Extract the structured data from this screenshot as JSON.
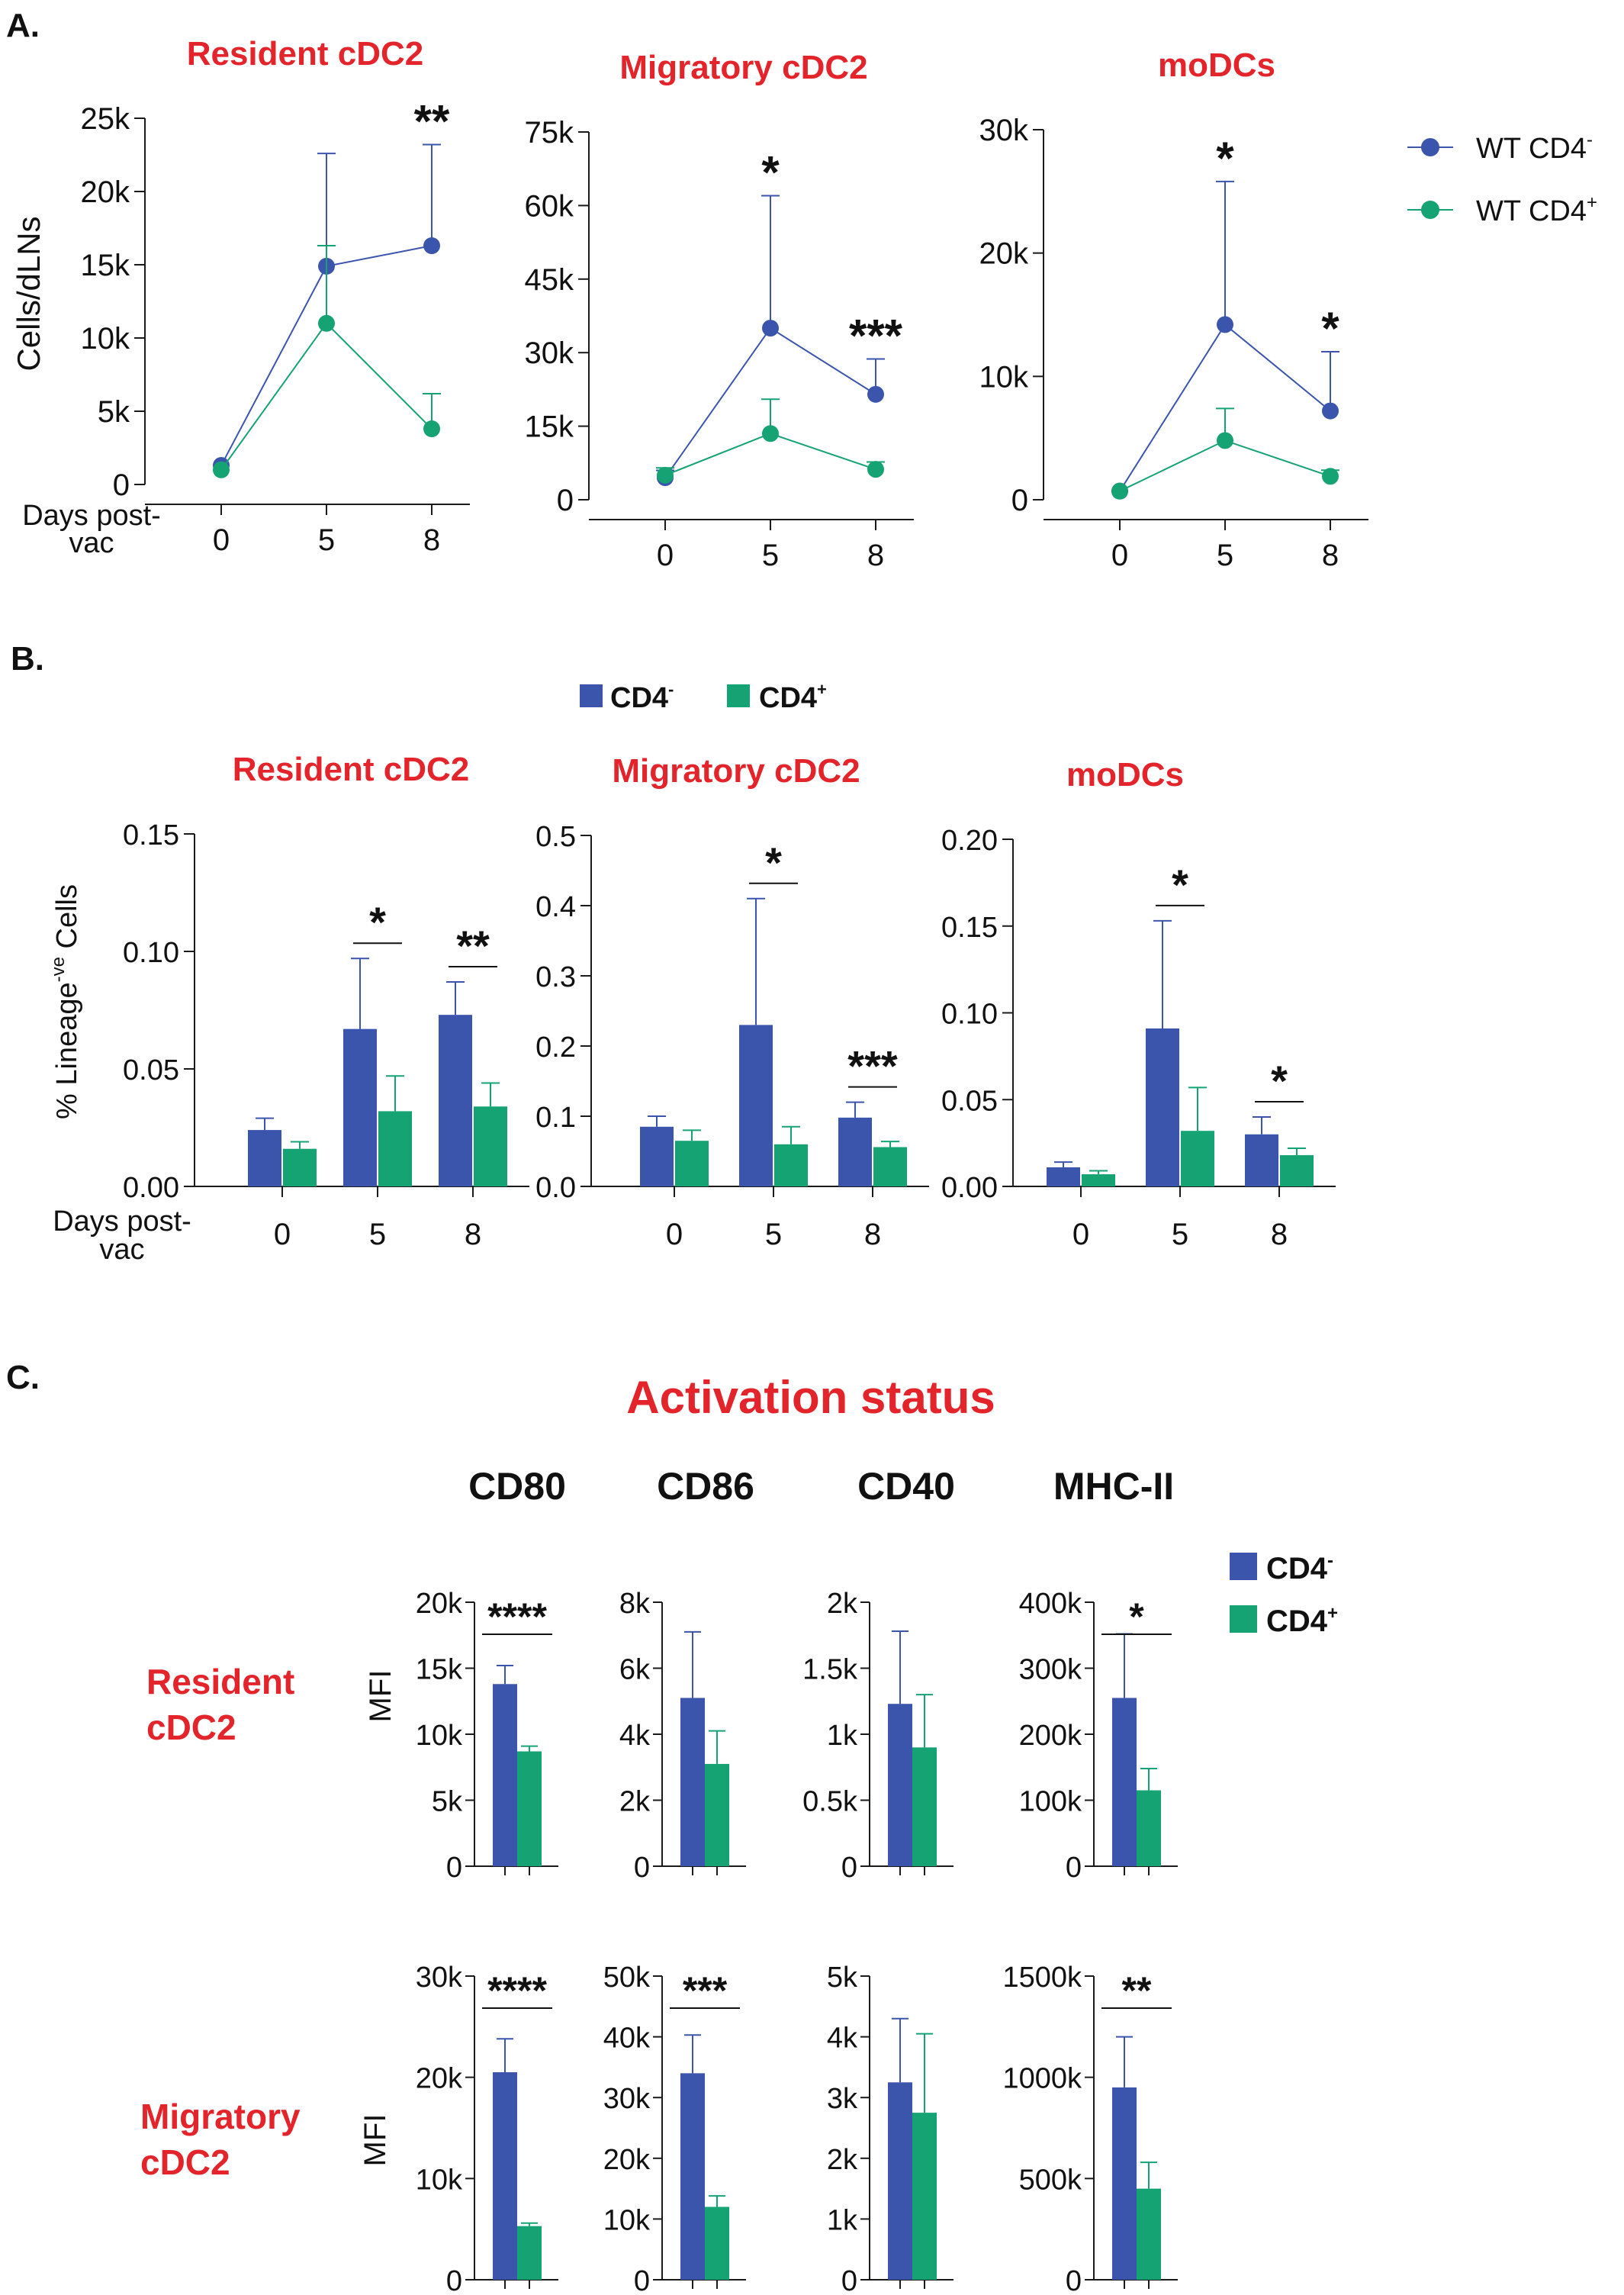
{
  "colors": {
    "cd4_neg": "#3b55ad",
    "cd4_pos": "#16a374",
    "title_red": "#e3242b",
    "axis": "#1a1a1a"
  },
  "panel_labels": {
    "a": "A.",
    "b": "B.",
    "c": "C."
  },
  "panel_a": {
    "legend": {
      "neg_label": "WT CD4",
      "neg_sup": "-",
      "pos_label": "WT CD4",
      "pos_sup": "+"
    },
    "ylabel": "Cells/dLNs",
    "xlabel_line1": "Days post-",
    "xlabel_line2": "vac"
  },
  "panel_b": {
    "legend": {
      "neg_label": "CD4",
      "neg_sup": "-",
      "pos_label": "CD4",
      "pos_sup": "+"
    },
    "ylabel_pre": "% Lineage",
    "ylabel_sup": "-ve",
    "ylabel_post": " Cells",
    "xlabel_line1": "Days post-",
    "xlabel_line2": "vac"
  },
  "panel_c": {
    "title": "Activation status",
    "columns": [
      "CD80",
      "CD86",
      "CD40",
      "MHC-II"
    ],
    "row_labels": [
      [
        "Resident",
        "cDC2"
      ],
      [
        "Migratory",
        "cDC2"
      ]
    ],
    "ylabel": "MFI",
    "legend": {
      "neg_label": "CD4",
      "neg_sup": "-",
      "pos_label": "CD4",
      "pos_sup": "+"
    }
  },
  "chart_data": [
    {
      "id": "A1",
      "type": "line",
      "title": "Resident cDC2",
      "x": [
        0,
        5,
        8
      ],
      "xticks": [
        "0",
        "5",
        "8"
      ],
      "ylim": [
        0,
        25000
      ],
      "yticks": [
        "0",
        "5k",
        "10k",
        "15k",
        "20k",
        "25k"
      ],
      "series": [
        {
          "name": "WT CD4-",
          "values": [
            1300,
            14900,
            16300
          ],
          "err": [
            0,
            7700,
            6900
          ]
        },
        {
          "name": "WT CD4+",
          "values": [
            1000,
            11000,
            3800
          ],
          "err": [
            0,
            5300,
            2400
          ]
        }
      ],
      "annotations": [
        {
          "x": 8,
          "text": "**"
        }
      ]
    },
    {
      "id": "A2",
      "type": "line",
      "title": "Migratory cDC2",
      "x": [
        0,
        5,
        8
      ],
      "xticks": [
        "0",
        "5",
        "8"
      ],
      "ylim": [
        0,
        75000
      ],
      "yticks": [
        "0",
        "15k",
        "30k",
        "45k",
        "60k",
        "75k"
      ],
      "series": [
        {
          "name": "WT CD4-",
          "values": [
            4500,
            35000,
            21500
          ],
          "err": [
            1500,
            27000,
            7200
          ]
        },
        {
          "name": "WT CD4+",
          "values": [
            5000,
            13500,
            6200
          ],
          "err": [
            1500,
            7000,
            1500
          ]
        }
      ],
      "annotations": [
        {
          "x": 5,
          "text": "*"
        },
        {
          "x": 8,
          "text": "***"
        }
      ]
    },
    {
      "id": "A3",
      "type": "line",
      "title": "moDCs",
      "x": [
        0,
        5,
        8
      ],
      "xticks": [
        "0",
        "5",
        "8"
      ],
      "ylim": [
        0,
        30000
      ],
      "yticks": [
        "0",
        "10k",
        "20k",
        "30k"
      ],
      "series": [
        {
          "name": "WT CD4-",
          "values": [
            700,
            14200,
            7200
          ],
          "err": [
            0,
            11600,
            4800
          ]
        },
        {
          "name": "WT CD4+",
          "values": [
            700,
            4800,
            1900
          ],
          "err": [
            0,
            2600,
            500
          ]
        }
      ],
      "annotations": [
        {
          "x": 5,
          "text": "*"
        },
        {
          "x": 8,
          "text": "*"
        }
      ]
    },
    {
      "id": "B1",
      "type": "bar",
      "title": "Resident cDC2",
      "categories": [
        "0",
        "5",
        "8"
      ],
      "ylim": [
        0,
        0.15
      ],
      "yticks": [
        "0.00",
        "0.05",
        "0.10",
        "0.15"
      ],
      "series": [
        {
          "name": "CD4-",
          "values": [
            0.024,
            0.067,
            0.073
          ],
          "err": [
            0.005,
            0.03,
            0.014
          ]
        },
        {
          "name": "CD4+",
          "values": [
            0.016,
            0.032,
            0.034
          ],
          "err": [
            0.003,
            0.015,
            0.01
          ]
        }
      ],
      "annotations": [
        {
          "index": 1,
          "text": "*"
        },
        {
          "index": 2,
          "text": "**"
        }
      ]
    },
    {
      "id": "B2",
      "type": "bar",
      "title": "Migratory cDC2",
      "categories": [
        "0",
        "5",
        "8"
      ],
      "ylim": [
        0,
        0.5
      ],
      "yticks": [
        "0.0",
        "0.1",
        "0.2",
        "0.3",
        "0.4",
        "0.5"
      ],
      "series": [
        {
          "name": "CD4-",
          "values": [
            0.085,
            0.23,
            0.098
          ],
          "err": [
            0.015,
            0.18,
            0.022
          ]
        },
        {
          "name": "CD4+",
          "values": [
            0.065,
            0.06,
            0.056
          ],
          "err": [
            0.015,
            0.025,
            0.008
          ]
        }
      ],
      "annotations": [
        {
          "index": 1,
          "text": "*"
        },
        {
          "index": 2,
          "text": "***"
        }
      ]
    },
    {
      "id": "B3",
      "type": "bar",
      "title": "moDCs",
      "categories": [
        "0",
        "5",
        "8"
      ],
      "ylim": [
        0,
        0.2
      ],
      "yticks": [
        "0.00",
        "0.05",
        "0.10",
        "0.15",
        "0.20"
      ],
      "series": [
        {
          "name": "CD4-",
          "values": [
            0.011,
            0.091,
            0.03
          ],
          "err": [
            0.003,
            0.062,
            0.01
          ]
        },
        {
          "name": "CD4+",
          "values": [
            0.007,
            0.032,
            0.018
          ],
          "err": [
            0.002,
            0.025,
            0.004
          ]
        }
      ],
      "annotations": [
        {
          "index": 1,
          "text": "*"
        },
        {
          "index": 2,
          "text": "*"
        }
      ]
    },
    {
      "id": "C-res-CD80",
      "type": "bar",
      "title": "CD80",
      "row": "Resident cDC2",
      "ylim": [
        0,
        20000
      ],
      "yticks": [
        "0",
        "5k",
        "10k",
        "15k",
        "20k"
      ],
      "values": [
        13800,
        8700
      ],
      "err": [
        1400,
        400
      ],
      "annotation": "****"
    },
    {
      "id": "C-res-CD86",
      "type": "bar",
      "title": "CD86",
      "row": "Resident cDC2",
      "ylim": [
        0,
        8000
      ],
      "yticks": [
        "0",
        "2k",
        "4k",
        "6k",
        "8k"
      ],
      "values": [
        5100,
        3100
      ],
      "err": [
        2000,
        1000
      ],
      "annotation": ""
    },
    {
      "id": "C-res-CD40",
      "type": "bar",
      "title": "CD40",
      "row": "Resident cDC2",
      "ylim": [
        0,
        2000
      ],
      "yticks": [
        "0",
        "0.5k",
        "1k",
        "1.5k",
        "2k"
      ],
      "values": [
        1230,
        900
      ],
      "err": [
        550,
        400
      ],
      "annotation": ""
    },
    {
      "id": "C-res-MHCII",
      "type": "bar",
      "title": "MHC-II",
      "row": "Resident cDC2",
      "ylim": [
        0,
        400000
      ],
      "yticks": [
        "0",
        "100k",
        "200k",
        "300k",
        "400k"
      ],
      "values": [
        255000,
        115000
      ],
      "err": [
        97000,
        33000
      ],
      "annotation": "*"
    },
    {
      "id": "C-mig-CD80",
      "type": "bar",
      "title": "CD80",
      "row": "Migratory cDC2",
      "ylim": [
        0,
        30000
      ],
      "yticks": [
        "0",
        "10k",
        "20k",
        "30k"
      ],
      "values": [
        20500,
        5300
      ],
      "err": [
        3300,
        300
      ],
      "annotation": "****"
    },
    {
      "id": "C-mig-CD86",
      "type": "bar",
      "title": "CD86",
      "row": "Migratory cDC2",
      "ylim": [
        0,
        50000
      ],
      "yticks": [
        "0",
        "10k",
        "20k",
        "30k",
        "40k",
        "50k"
      ],
      "values": [
        34000,
        12000
      ],
      "err": [
        6300,
        1800
      ],
      "annotation": "***"
    },
    {
      "id": "C-mig-CD40",
      "type": "bar",
      "title": "CD40",
      "row": "Migratory cDC2",
      "ylim": [
        0,
        5000
      ],
      "yticks": [
        "0",
        "1k",
        "2k",
        "3k",
        "4k",
        "5k"
      ],
      "values": [
        3250,
        2750
      ],
      "err": [
        1050,
        1300
      ],
      "annotation": ""
    },
    {
      "id": "C-mig-MHCII",
      "type": "bar",
      "title": "MHC-II",
      "row": "Migratory cDC2",
      "ylim": [
        0,
        1500000
      ],
      "yticks": [
        "0",
        "500k",
        "1000k",
        "1500k"
      ],
      "values": [
        950000,
        450000
      ],
      "err": [
        250000,
        130000
      ],
      "annotation": "**"
    }
  ]
}
